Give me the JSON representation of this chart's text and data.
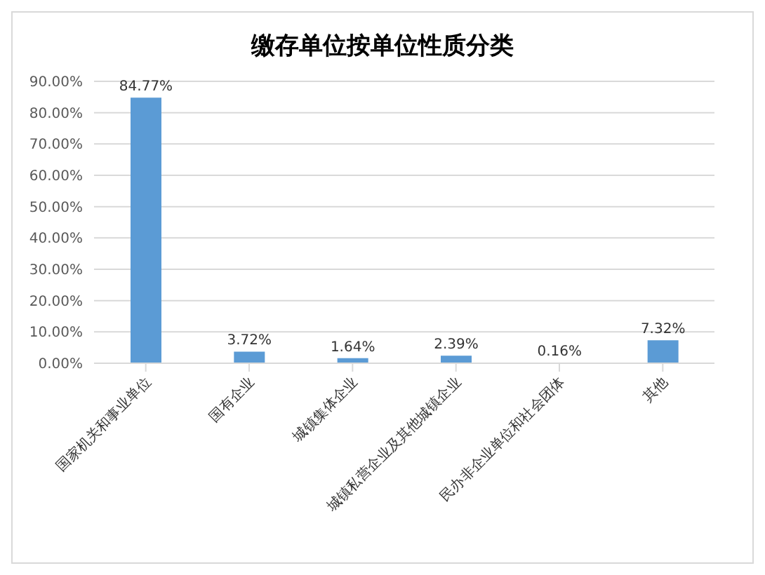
{
  "chart_data": {
    "type": "bar",
    "title": "缴存单位按单位性质分类",
    "categories": [
      "国家机关和事业单位",
      "国有企业",
      "城镇集体企业",
      "城镇私营企业及其他城镇企业",
      "民办非企业单位和社会团体",
      "其他"
    ],
    "values": [
      84.77,
      3.72,
      1.64,
      2.39,
      0.16,
      7.32
    ],
    "value_labels": [
      "84.77%",
      "3.72%",
      "1.64%",
      "2.39%",
      "0.16%",
      "7.32%"
    ],
    "color": "#5b9bd5",
    "ylim": [
      0,
      90
    ],
    "yticks": [
      {
        "value": 0,
        "label": "0.00%"
      },
      {
        "value": 10,
        "label": "10.00%"
      },
      {
        "value": 20,
        "label": "20.00%"
      },
      {
        "value": 30,
        "label": "30.00%"
      },
      {
        "value": 40,
        "label": "40.00%"
      },
      {
        "value": 50,
        "label": "50.00%"
      },
      {
        "value": 60,
        "label": "60.00%"
      },
      {
        "value": 70,
        "label": "70.00%"
      },
      {
        "value": 80,
        "label": "80.00%"
      },
      {
        "value": 90,
        "label": "90.00%"
      }
    ],
    "grid": "y"
  }
}
